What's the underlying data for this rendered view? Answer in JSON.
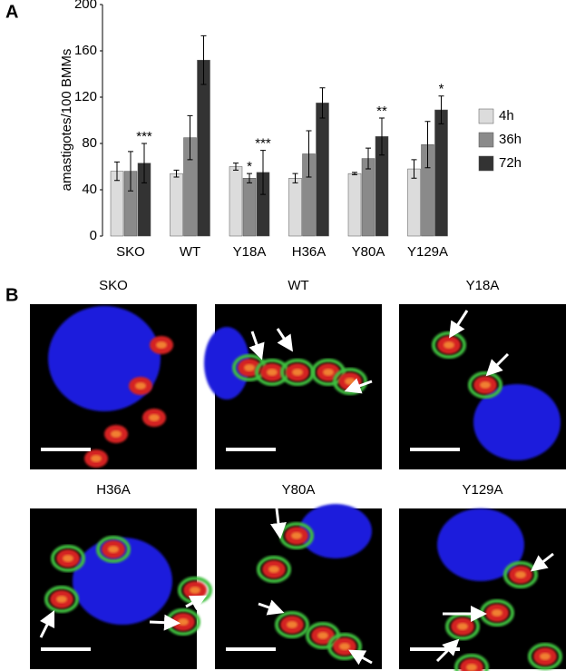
{
  "panel_labels": [
    "A",
    "B"
  ],
  "chart_data": {
    "type": "bar",
    "ylabel": "amastigotes/100 BMMs",
    "categories": [
      "SKO",
      "WT",
      "Y18A",
      "H36A",
      "Y80A",
      "Y129A"
    ],
    "series": [
      {
        "name": "4h",
        "color": "#dcdcdc",
        "values": [
          56,
          54,
          60,
          50,
          54,
          58
        ],
        "errors": [
          8,
          3,
          3,
          4,
          1,
          8
        ],
        "annotations": [
          null,
          null,
          null,
          null,
          null,
          null
        ]
      },
      {
        "name": "36h",
        "color": "#8a8a8a",
        "values": [
          56,
          85,
          50,
          71,
          67,
          79
        ],
        "errors": [
          17,
          19,
          4,
          20,
          9,
          20
        ],
        "annotations": [
          null,
          null,
          "*",
          null,
          null,
          null
        ]
      },
      {
        "name": "72h",
        "color": "#333333",
        "values": [
          63,
          152,
          55,
          115,
          86,
          109
        ],
        "errors": [
          17,
          21,
          19,
          13,
          16,
          12
        ],
        "annotations": [
          "***",
          null,
          "***",
          null,
          "**",
          "*"
        ]
      }
    ],
    "ylim": [
      0,
      200
    ],
    "yticks": [
      0,
      40,
      80,
      120,
      160,
      200
    ],
    "grid": false,
    "legend": "right"
  },
  "images": [
    {
      "title": "SKO"
    },
    {
      "title": "WT"
    },
    {
      "title": "Y18A"
    },
    {
      "title": "H36A"
    },
    {
      "title": "Y80A"
    },
    {
      "title": "Y129A"
    }
  ]
}
